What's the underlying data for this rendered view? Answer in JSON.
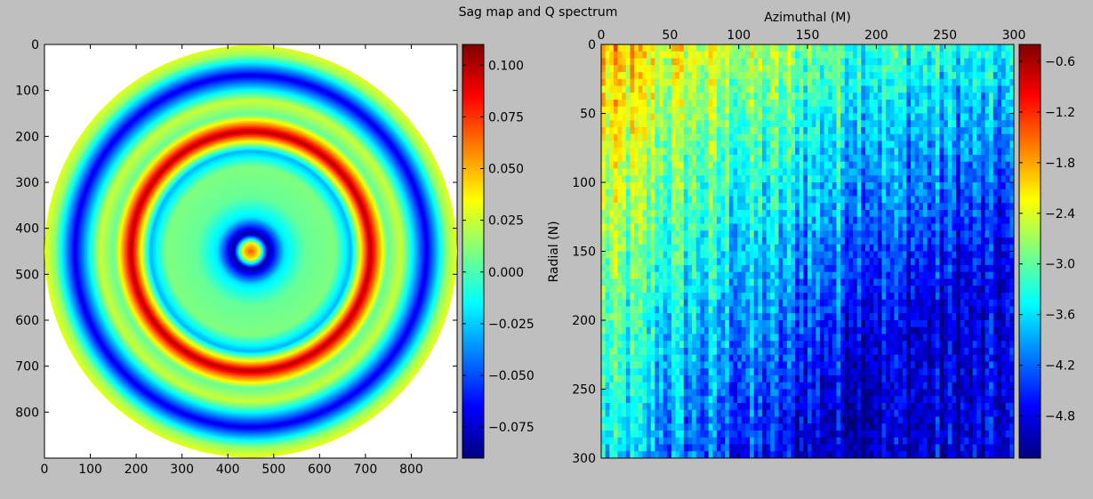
{
  "figure": {
    "title": "Sag map and Q spectrum"
  },
  "chart_data": [
    {
      "type": "heatmap",
      "name": "sag-map",
      "title": "",
      "xlabel": "",
      "ylabel": "",
      "xlim": [
        0,
        900
      ],
      "ylim": [
        900,
        0
      ],
      "xticks": [
        0,
        100,
        200,
        300,
        400,
        500,
        600,
        700,
        800
      ],
      "yticks": [
        0,
        100,
        200,
        300,
        400,
        500,
        600,
        700,
        800
      ],
      "grid": false,
      "colormap": "jet",
      "colorbar": {
        "vmin": -0.09,
        "vmax": 0.11,
        "ticks": [
          "0.100",
          "0.075",
          "0.050",
          "0.025",
          "0.000",
          "−0.025",
          "−0.050",
          "−0.075"
        ],
        "tick_values": [
          0.1,
          0.075,
          0.05,
          0.025,
          0.0,
          -0.025,
          -0.05,
          -0.075
        ]
      },
      "description_of_values": "circular aperture centered near (450,450), radius ~450; concentric rings",
      "rings": [
        {
          "radius": 0,
          "value": 0.07
        },
        {
          "radius": 18,
          "value": 0.04
        },
        {
          "radius": 40,
          "value": -0.085
        },
        {
          "radius": 75,
          "value": -0.02
        },
        {
          "radius": 120,
          "value": 0.005
        },
        {
          "radius": 185,
          "value": 0.01
        },
        {
          "radius": 220,
          "value": -0.03
        },
        {
          "radius": 262,
          "value": 0.1
        },
        {
          "radius": 300,
          "value": 0.005
        },
        {
          "radius": 330,
          "value": 0.025
        },
        {
          "radius": 385,
          "value": -0.07
        },
        {
          "radius": 430,
          "value": 0.015
        },
        {
          "radius": 450,
          "value": 0.03
        }
      ]
    },
    {
      "type": "heatmap",
      "name": "q-spectrum",
      "title": "",
      "xlabel": "Azimuthal (M)",
      "ylabel": "Radial (N)",
      "xlim": [
        0,
        300
      ],
      "ylim": [
        300,
        0
      ],
      "xticks": [
        0,
        50,
        100,
        150,
        200,
        250,
        300
      ],
      "yticks": [
        0,
        50,
        100,
        150,
        200,
        250,
        300
      ],
      "x_axis_position": "top",
      "grid": false,
      "colormap": "jet",
      "colorbar": {
        "vmin": -5.3,
        "vmax": -0.4,
        "ticks": [
          "−0.6",
          "−1.2",
          "−1.8",
          "−2.4",
          "−3.0",
          "−3.6",
          "−4.2",
          "−4.8"
        ],
        "tick_values": [
          -0.6,
          -1.2,
          -1.8,
          -2.4,
          -3.0,
          -3.6,
          -4.2,
          -4.8
        ]
      },
      "description_of_values": "log-amplitude spectrum; high (~-1.8) at low M and low N, decreasing to ~-4.8 at high M and high N",
      "trend": {
        "value_at_origin": -1.9,
        "value_at_far_corner": -4.9
      }
    }
  ],
  "colors": {
    "background": "#bfbfbf",
    "jet": [
      "#00007f",
      "#0000ff",
      "#007fff",
      "#00ffff",
      "#7fff7f",
      "#ffff00",
      "#ff7f00",
      "#ff0000",
      "#7f0000"
    ]
  }
}
